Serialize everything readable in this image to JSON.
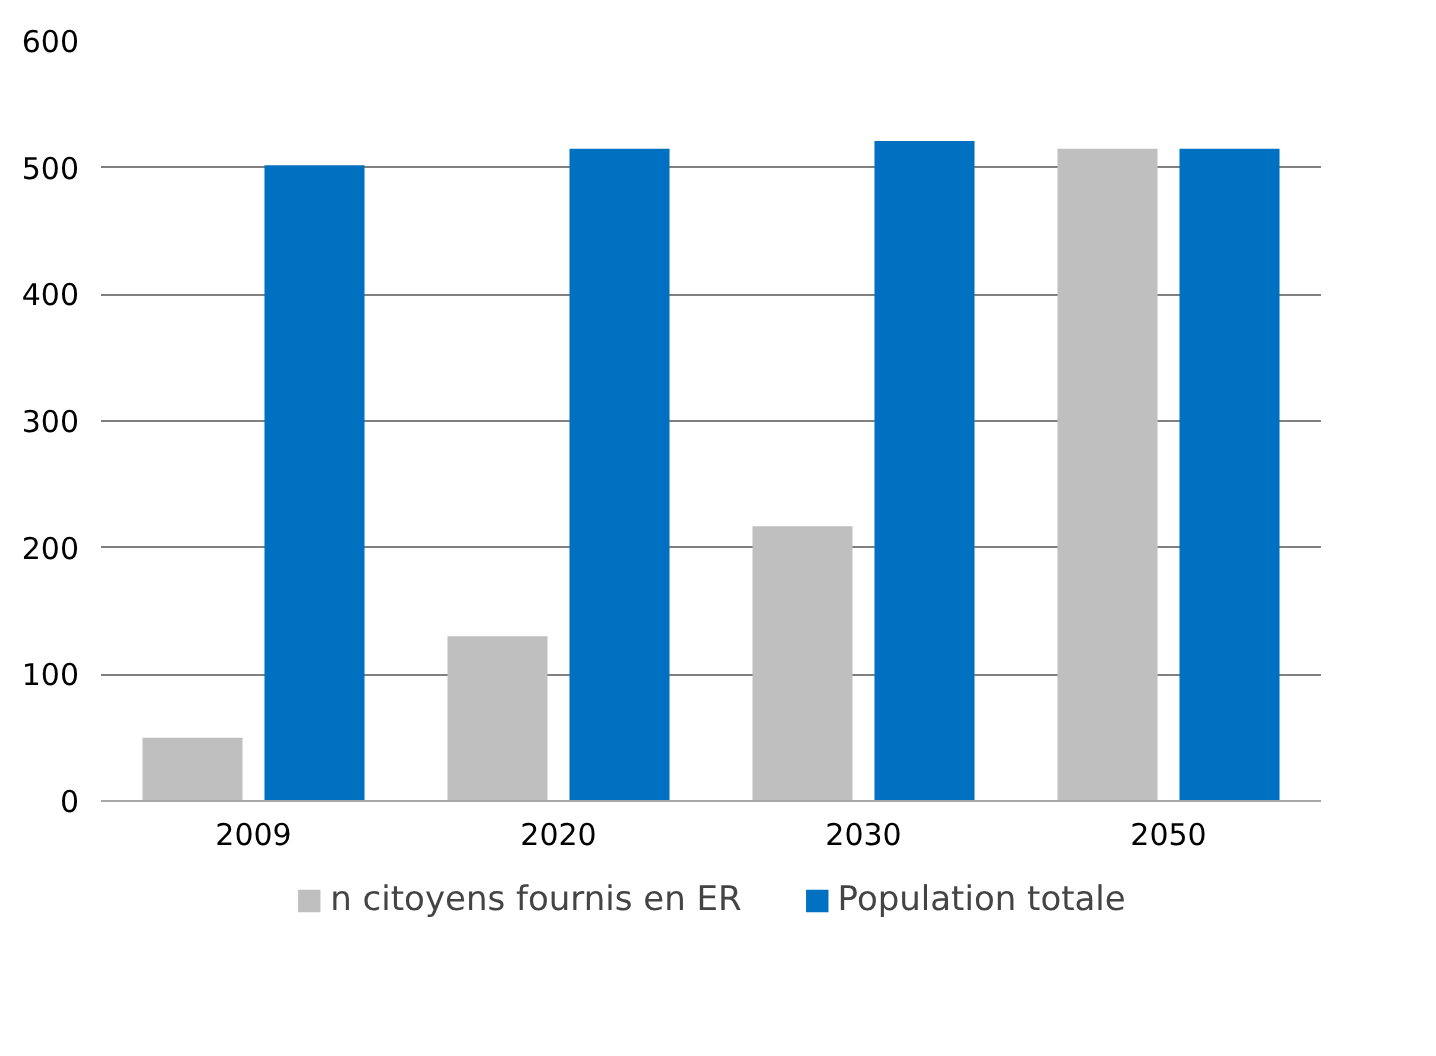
{
  "chart_data": {
    "type": "bar",
    "categories": [
      "2009",
      "2020",
      "2030",
      "2050"
    ],
    "series": [
      {
        "name": "n citoyens fournis en ER",
        "color": "#bfbfbf",
        "values": [
          50,
          130,
          217,
          515
        ]
      },
      {
        "name": "Population totale",
        "color": "#0070c0",
        "values": [
          502,
          515,
          521,
          515
        ]
      }
    ],
    "ylim": [
      0,
      600
    ],
    "yticks": [
      0,
      100,
      200,
      300,
      400,
      500,
      600
    ],
    "grid": "y",
    "legend": "bottom"
  }
}
